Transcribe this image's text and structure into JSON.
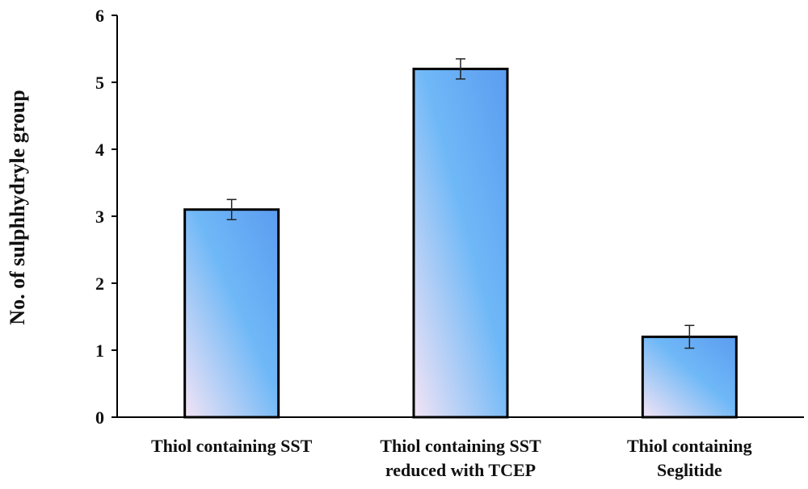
{
  "chart_data": {
    "type": "bar",
    "categories": [
      [
        "Thiol containing SST"
      ],
      [
        "Thiol containing SST",
        "reduced with TCEP"
      ],
      [
        "Thiol containing",
        "Seglitide"
      ]
    ],
    "values": [
      3.1,
      5.2,
      1.2
    ],
    "errors": [
      0.15,
      0.15,
      0.17
    ],
    "title": "",
    "xlabel": "",
    "ylabel": "No. of sulphhydryle group",
    "ylim": [
      0,
      6
    ],
    "yticks": [
      0,
      1,
      2,
      3,
      4,
      5,
      6
    ],
    "grid": false,
    "legend": "none",
    "colors": {
      "bar_top": "#5b9cf0",
      "bar_mid": "#6fb8f7",
      "bar_bottom": "#f3e4f5",
      "bar_edge": "#000000",
      "axis": "#000000"
    }
  }
}
